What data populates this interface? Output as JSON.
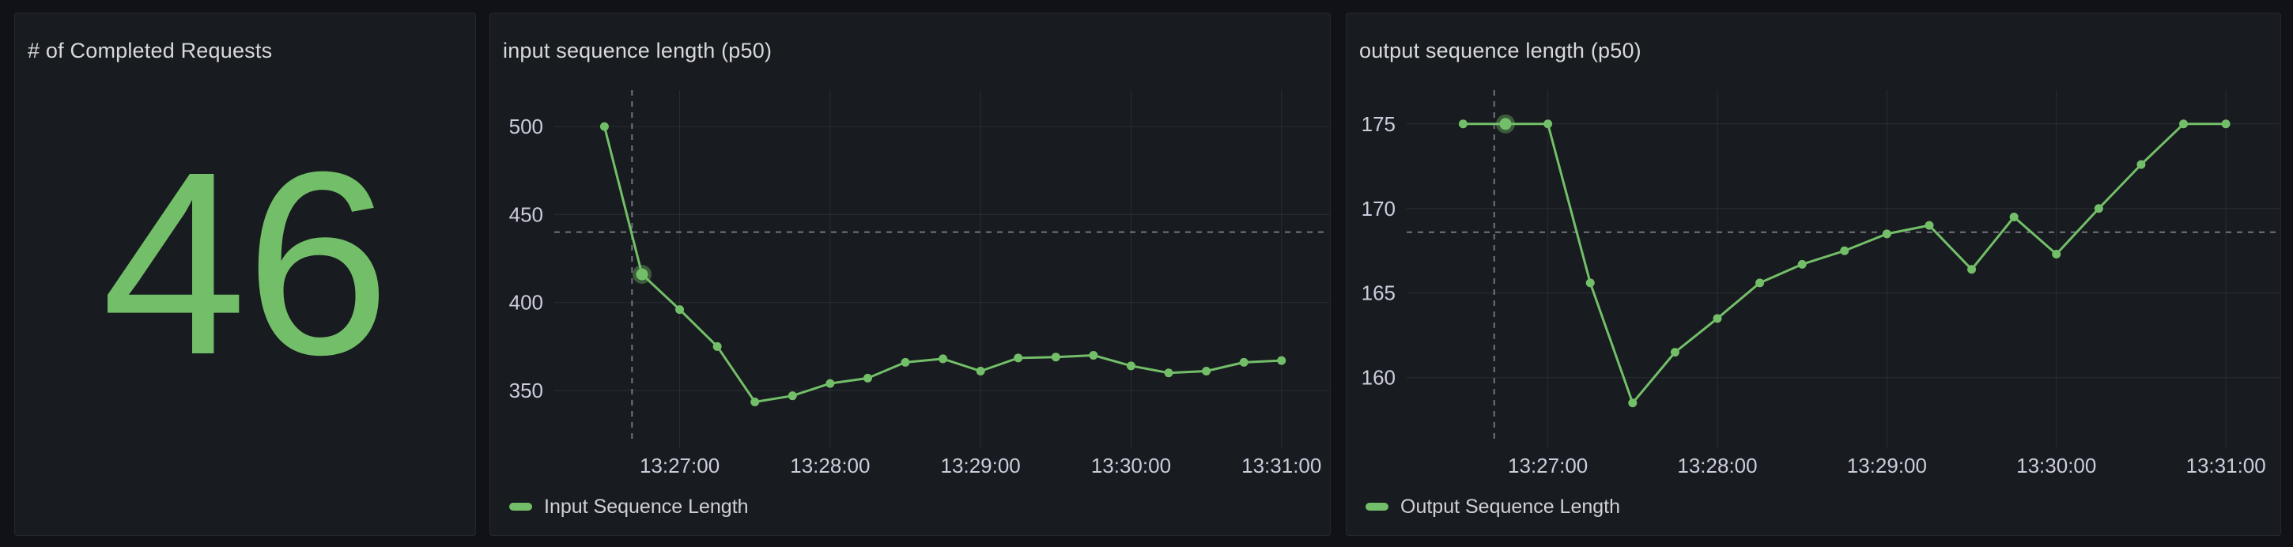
{
  "colors": {
    "series_green": "#73bf69",
    "crosshair": "rgba(204,204,220,0.5)"
  },
  "stat_panel": {
    "title": "# of Completed Requests",
    "value": "46"
  },
  "chart_data": [
    {
      "type": "line",
      "title": "input sequence length (p50)",
      "legend_label": "Input Sequence Length",
      "legend_position": "bottom",
      "grid": true,
      "x": [
        "13:26:30",
        "13:26:45",
        "13:27:00",
        "13:27:15",
        "13:27:30",
        "13:27:45",
        "13:28:00",
        "13:28:15",
        "13:28:30",
        "13:28:45",
        "13:29:00",
        "13:29:15",
        "13:29:30",
        "13:29:45",
        "13:30:00",
        "13:30:15",
        "13:30:30",
        "13:30:45",
        "13:31:00"
      ],
      "values": [
        500,
        416,
        396,
        375,
        343.5,
        347,
        354,
        357,
        366,
        368,
        361,
        368.5,
        369,
        370,
        364,
        360,
        361,
        366,
        367
      ],
      "x_ticks": [
        "13:27:00",
        "13:28:00",
        "13:29:00",
        "13:30:00",
        "13:31:00"
      ],
      "y_ticks": [
        350,
        400,
        450,
        500
      ],
      "xlim": [
        "13:26:10",
        "13:31:19"
      ],
      "ylim": [
        320.8,
        520.7
      ],
      "crosshair": {
        "x_time": "13:26:41",
        "y_value": 440,
        "hover_index": 1
      }
    },
    {
      "type": "line",
      "title": "output sequence length (p50)",
      "legend_label": "Output Sequence Length",
      "legend_position": "bottom",
      "grid": true,
      "x": [
        "13:26:30",
        "13:26:45",
        "13:27:00",
        "13:27:15",
        "13:27:30",
        "13:27:45",
        "13:28:00",
        "13:28:15",
        "13:28:30",
        "13:28:45",
        "13:29:00",
        "13:29:15",
        "13:29:30",
        "13:29:45",
        "13:30:00",
        "13:30:15",
        "13:30:30",
        "13:30:45",
        "13:31:00"
      ],
      "values": [
        175,
        175,
        175,
        165.6,
        158.5,
        161.5,
        163.5,
        165.6,
        166.7,
        167.5,
        168.5,
        169,
        166.4,
        169.5,
        167.3,
        170,
        172.6,
        175,
        175
      ],
      "x_ticks": [
        "13:27:00",
        "13:28:00",
        "13:29:00",
        "13:30:00",
        "13:31:00"
      ],
      "y_ticks": [
        160,
        165,
        170,
        175
      ],
      "xlim": [
        "13:26:10",
        "13:31:19"
      ],
      "ylim": [
        156.2,
        177.0
      ],
      "crosshair": {
        "x_time": "13:26:41",
        "y_value": 168.6,
        "hover_index": 1
      }
    }
  ]
}
